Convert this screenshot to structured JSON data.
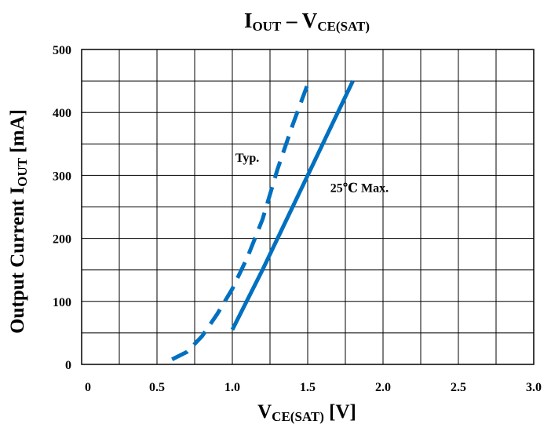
{
  "chart_data": {
    "type": "line",
    "title": {
      "main": "I",
      "sub1": "OUT",
      "dash": " – V",
      "sub2": "CE(SAT)"
    },
    "xlabel": {
      "main": "V",
      "sub": "CE(SAT)",
      "unit": " [V]"
    },
    "ylabel": {
      "main": "Output Current I",
      "sub": "OUT",
      "unit": " [mA]"
    },
    "xlim": [
      0,
      3.0
    ],
    "ylim": [
      0,
      500
    ],
    "x_ticks": [
      "0",
      "0.5",
      "1.0",
      "1.5",
      "2.0",
      "2.5",
      "3.0"
    ],
    "y_ticks": [
      "0",
      "100",
      "200",
      "300",
      "400",
      "500"
    ],
    "grid": true,
    "series": [
      {
        "name": "Typ.",
        "style": "dashed",
        "color": "#0070C0",
        "x": [
          0.6,
          0.7,
          0.8,
          0.9,
          1.0,
          1.1,
          1.2,
          1.3,
          1.4,
          1.5
        ],
        "y": [
          8,
          20,
          45,
          80,
          120,
          170,
          230,
          310,
          380,
          445
        ]
      },
      {
        "name": "25℃ Max.",
        "style": "solid",
        "color": "#0070C0",
        "x": [
          1.0,
          1.2,
          1.4,
          1.6,
          1.8
        ],
        "y": [
          55,
          150,
          250,
          350,
          450
        ]
      }
    ],
    "annotations": [
      {
        "text": "Typ.",
        "x": 1.02,
        "y": 322
      },
      {
        "text": "25℃  Max.",
        "x": 1.65,
        "y": 274
      }
    ]
  }
}
